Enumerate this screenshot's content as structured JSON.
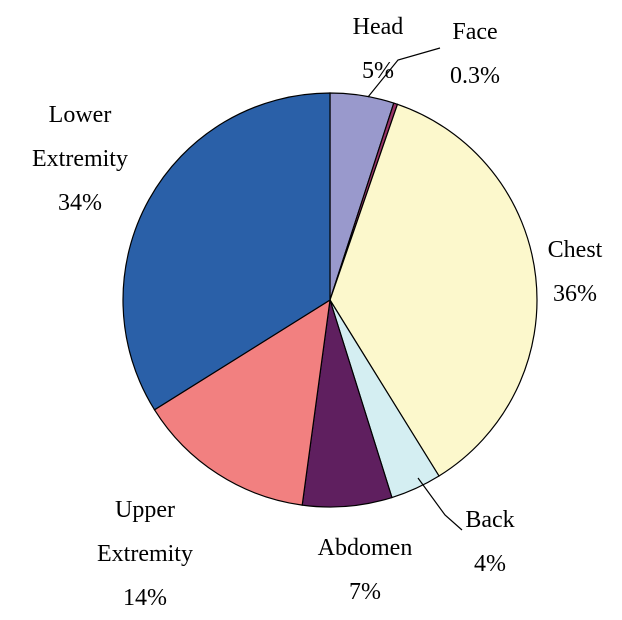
{
  "chart_data": {
    "type": "pie",
    "categories": [
      "Head",
      "Face",
      "Chest",
      "Back",
      "Abdomen",
      "Upper Extremity",
      "Lower Extremity"
    ],
    "values": [
      5,
      0.3,
      36,
      4,
      7,
      14,
      34
    ],
    "value_labels": [
      "5%",
      "0.3%",
      "36%",
      "4%",
      "7%",
      "14%",
      "34%"
    ],
    "colors": [
      "#9999cc",
      "#993366",
      "#fcf8cc",
      "#d4eef2",
      "#5f1f5f",
      "#f28080",
      "#2a60a8"
    ]
  }
}
